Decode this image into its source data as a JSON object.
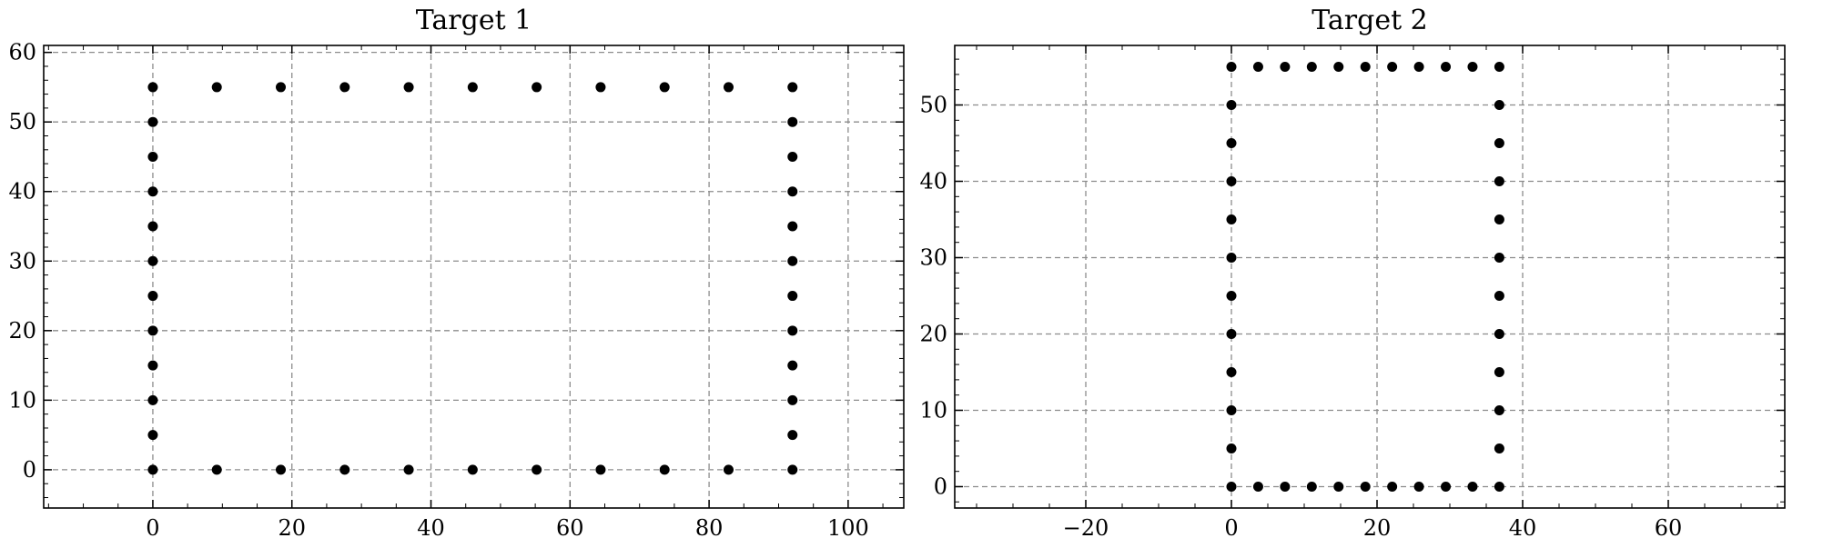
{
  "chart_data": [
    {
      "type": "scatter",
      "title": "Target 1",
      "xlabel": "",
      "ylabel": "",
      "xlim": [
        -15.7,
        108
      ],
      "ylim": [
        -5.5,
        61
      ],
      "xticks": [
        0,
        20,
        40,
        60,
        80,
        100
      ],
      "yticks": [
        0,
        10,
        20,
        30,
        40,
        50,
        60
      ],
      "xticklabels": [
        "0",
        "20",
        "40",
        "60",
        "80",
        "100"
      ],
      "yticklabels": [
        "0",
        "10",
        "20",
        "30",
        "40",
        "50",
        "60"
      ],
      "xminor_step": 5,
      "yminor_step": 2,
      "grid": true,
      "series": [
        {
          "name": "points",
          "x": [
            0,
            9.2,
            18.4,
            27.6,
            36.8,
            46.0,
            55.2,
            64.4,
            73.6,
            82.8,
            92,
            92,
            92,
            92,
            92,
            92,
            92,
            92,
            92,
            92,
            92,
            0,
            9.2,
            18.4,
            27.6,
            36.8,
            46.0,
            55.2,
            64.4,
            73.6,
            82.8,
            92,
            0,
            0,
            0,
            0,
            0,
            0,
            0,
            0,
            0,
            0
          ],
          "y": [
            0,
            0,
            0,
            0,
            0,
            0,
            0,
            0,
            0,
            0,
            0,
            5,
            10,
            15,
            20,
            25,
            30,
            35,
            40,
            45,
            50,
            55,
            55,
            55,
            55,
            55,
            55,
            55,
            55,
            55,
            55,
            55,
            5,
            10,
            15,
            20,
            25,
            30,
            35,
            40,
            45,
            50
          ]
        }
      ]
    },
    {
      "type": "scatter",
      "title": "Target 2",
      "xlabel": "",
      "ylabel": "",
      "xlim": [
        -38,
        76
      ],
      "ylim": [
        -2.8,
        57.8
      ],
      "xticks": [
        -20,
        0,
        20,
        40,
        60
      ],
      "yticks": [
        0,
        10,
        20,
        30,
        40,
        50
      ],
      "xticklabels": [
        "−20",
        "0",
        "20",
        "40",
        "60"
      ],
      "yticklabels": [
        "0",
        "10",
        "20",
        "30",
        "40",
        "50"
      ],
      "xminor_step": 5,
      "yminor_step": 2,
      "grid": true,
      "series": [
        {
          "name": "points",
          "x": [
            0,
            3.68,
            7.36,
            11.04,
            14.72,
            18.4,
            22.08,
            25.76,
            29.44,
            33.12,
            36.8,
            36.8,
            36.8,
            36.8,
            36.8,
            36.8,
            36.8,
            36.8,
            36.8,
            36.8,
            36.8,
            0,
            3.68,
            7.36,
            11.04,
            14.72,
            18.4,
            22.08,
            25.76,
            29.44,
            33.12,
            36.8,
            0,
            0,
            0,
            0,
            0,
            0,
            0,
            0,
            0,
            0
          ],
          "y": [
            0,
            0,
            0,
            0,
            0,
            0,
            0,
            0,
            0,
            0,
            0,
            5,
            10,
            15,
            20,
            25,
            30,
            35,
            40,
            45,
            50,
            55,
            55,
            55,
            55,
            55,
            55,
            55,
            55,
            55,
            55,
            55,
            5,
            10,
            15,
            20,
            25,
            30,
            35,
            40,
            45,
            50
          ]
        }
      ]
    }
  ]
}
